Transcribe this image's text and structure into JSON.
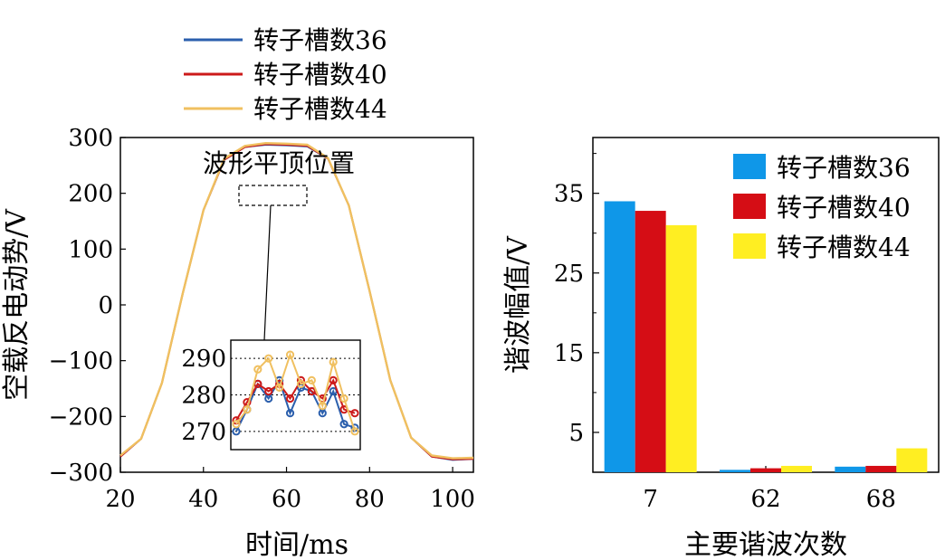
{
  "chart_data": [
    {
      "type": "line",
      "xlabel": "时间/ms",
      "ylabel": "空载反电动势/V",
      "xlim": [
        20,
        105
      ],
      "ylim": [
        -300,
        300
      ],
      "xticks": [
        20,
        40,
        60,
        80,
        100
      ],
      "yticks": [
        -300,
        -200,
        -100,
        0,
        100,
        200,
        300
      ],
      "legend_position": "top (above plot)",
      "series": [
        {
          "name": "转子槽数36",
          "color": "#2b5fad",
          "x": [
            20,
            25,
            30,
            35,
            40,
            45,
            50,
            55,
            60,
            65,
            70,
            75,
            80,
            85,
            90,
            95,
            100,
            105
          ],
          "y": [
            -272,
            -240,
            -140,
            20,
            170,
            260,
            283,
            287,
            286,
            284,
            262,
            178,
            25,
            -135,
            -238,
            -272,
            -278,
            -276
          ]
        },
        {
          "name": "转子槽数40",
          "color": "#cc1a1a",
          "x": [
            20,
            25,
            30,
            35,
            40,
            45,
            50,
            55,
            60,
            65,
            70,
            75,
            80,
            85,
            90,
            95,
            100,
            105
          ],
          "y": [
            -272,
            -240,
            -140,
            20,
            170,
            260,
            283,
            288,
            287,
            285,
            262,
            178,
            25,
            -135,
            -238,
            -272,
            -277,
            -276
          ]
        },
        {
          "name": "转子槽数44",
          "color": "#f0c060",
          "x": [
            20,
            25,
            30,
            35,
            40,
            45,
            50,
            55,
            60,
            65,
            70,
            75,
            80,
            85,
            90,
            95,
            100,
            105
          ],
          "y": [
            -270,
            -240,
            -140,
            20,
            170,
            262,
            285,
            290,
            289,
            287,
            263,
            178,
            25,
            -135,
            -238,
            -270,
            -275,
            -274
          ]
        }
      ],
      "annotation": "波形平顶位置",
      "inset": {
        "yticks": [
          270,
          280,
          290
        ],
        "ylim": [
          265,
          295
        ],
        "series": [
          {
            "name": "转子槽数36",
            "y": [
              270,
              276,
              283,
              279,
              284,
              275,
              282,
              281,
              275,
              281,
              272,
              271
            ]
          },
          {
            "name": "转子槽数40",
            "y": [
              273,
              278,
              283,
              281,
              283,
              279,
              284,
              281,
              279,
              284,
              276,
              275
            ]
          },
          {
            "name": "转子槽数44",
            "y": [
              272,
              276,
              287,
              290,
              282,
              291,
              283,
              284,
              277,
              289,
              279,
              270
            ]
          }
        ]
      }
    },
    {
      "type": "bar",
      "xlabel": "主要谐波次数",
      "ylabel": "谐波幅值/V",
      "ylim": [
        0,
        42
      ],
      "yticks": [
        5,
        15,
        25,
        35
      ],
      "categories": [
        "7",
        "62",
        "68"
      ],
      "legend_position": "top-right",
      "series": [
        {
          "name": "转子槽数36",
          "color": "#0f97e8",
          "values": [
            34.0,
            0.3,
            0.7
          ]
        },
        {
          "name": "转子槽数40",
          "color": "#d50d15",
          "values": [
            32.8,
            0.5,
            0.8
          ]
        },
        {
          "name": "转子槽数44",
          "color": "#ffee22",
          "values": [
            31.0,
            0.8,
            3.0
          ]
        }
      ]
    }
  ]
}
